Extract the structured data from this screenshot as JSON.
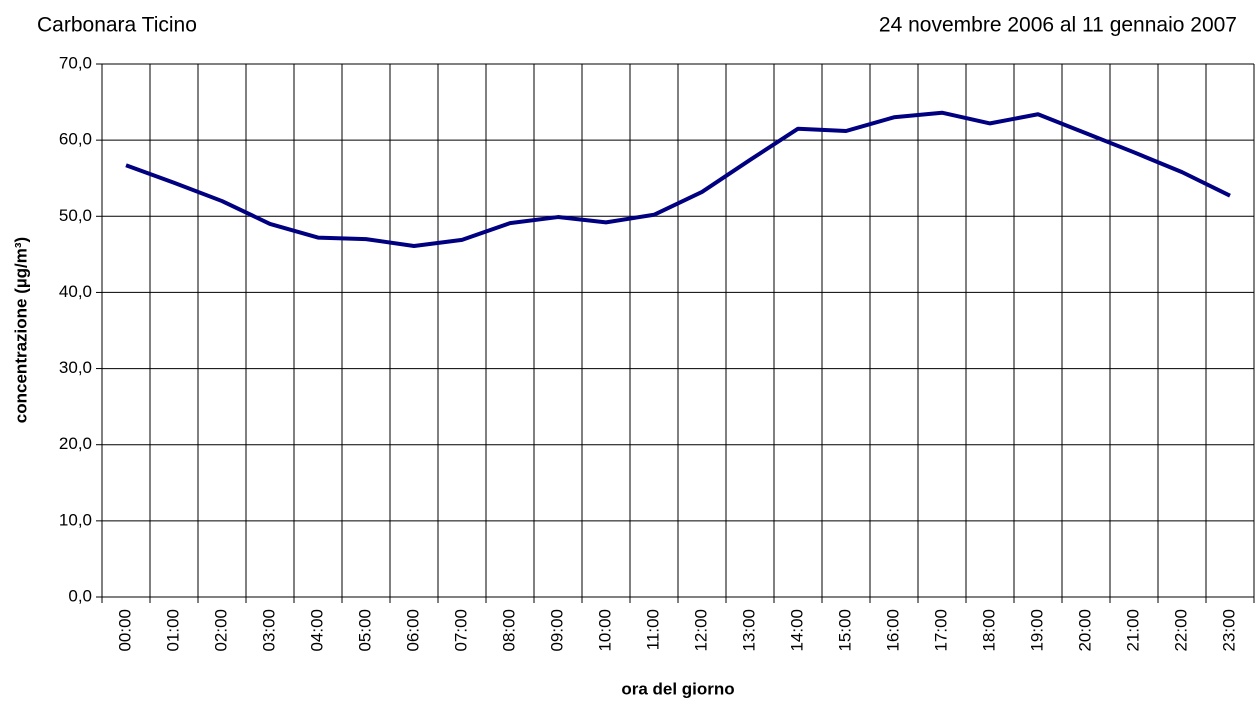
{
  "chart_data": {
    "type": "line",
    "title": "Carbonara Ticino",
    "subtitle": "24 novembre 2006 al 11 gennaio 2007",
    "x_label": "ora del giorno",
    "y_label": "concentrazione (µg/m³)",
    "categories": [
      "00:00",
      "01:00",
      "02:00",
      "03:00",
      "04:00",
      "05:00",
      "06:00",
      "07:00",
      "08:00",
      "09:00",
      "10:00",
      "11:00",
      "12:00",
      "13:00",
      "14:00",
      "15:00",
      "16:00",
      "17:00",
      "18:00",
      "19:00",
      "20:00",
      "21:00",
      "22:00",
      "23:00"
    ],
    "values": [
      56.7,
      54.4,
      52.0,
      49.0,
      47.2,
      47.0,
      46.1,
      46.9,
      49.1,
      49.9,
      49.2,
      50.2,
      53.2,
      57.4,
      61.5,
      61.2,
      63.0,
      63.6,
      62.2,
      63.4,
      60.9,
      58.4,
      55.8,
      52.7
    ],
    "color": "#000080",
    "ylim": [
      0,
      70
    ],
    "yticks": [
      {
        "value": 0,
        "label": "0,0"
      },
      {
        "value": 10,
        "label": "10,0"
      },
      {
        "value": 20,
        "label": "20,0"
      },
      {
        "value": 30,
        "label": "30,0"
      },
      {
        "value": 40,
        "label": "40,0"
      },
      {
        "value": 50,
        "label": "50,0"
      },
      {
        "value": 60,
        "label": "60,0"
      },
      {
        "value": 70,
        "label": "70,0"
      }
    ],
    "grid": true
  }
}
